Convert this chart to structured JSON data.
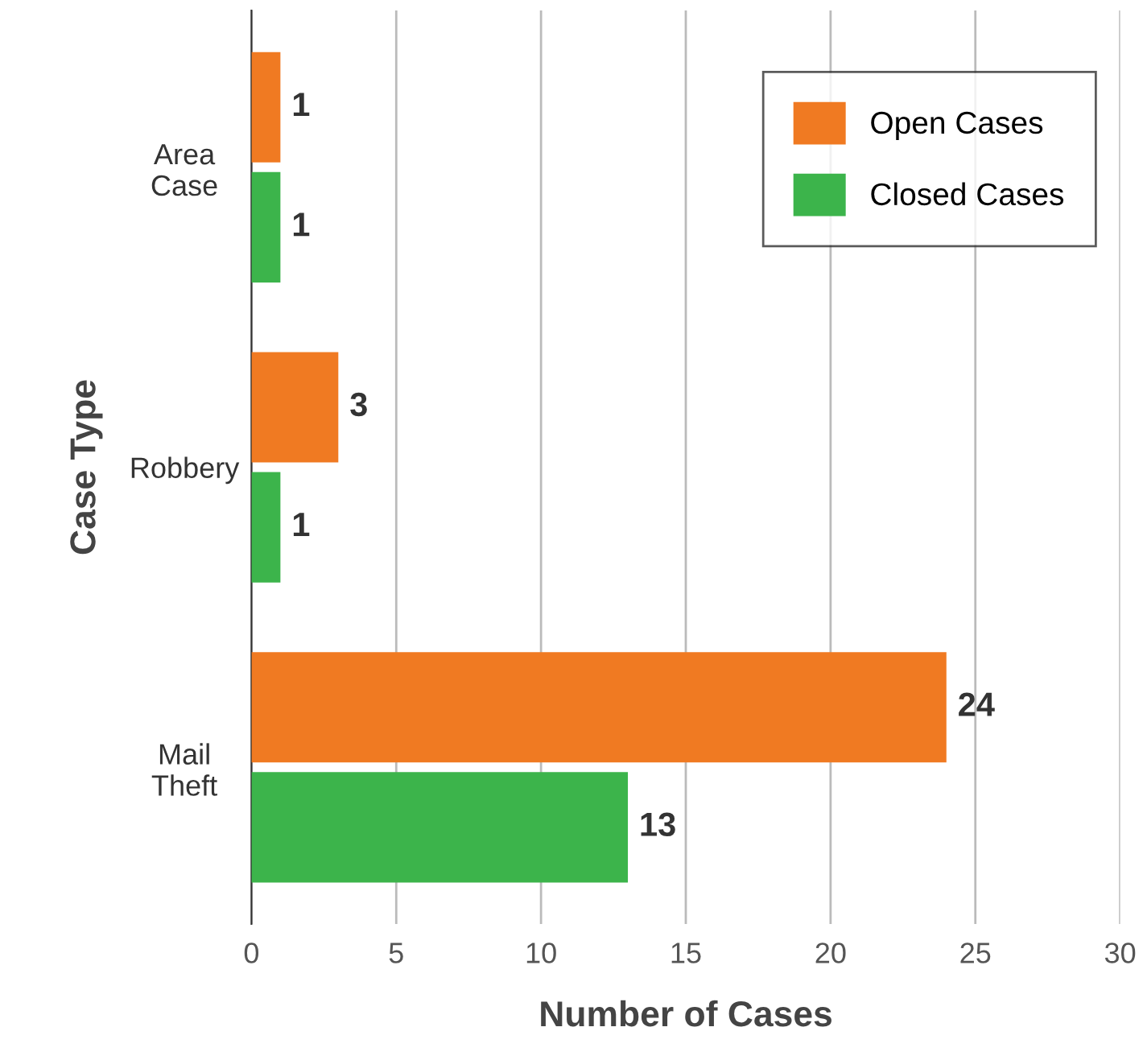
{
  "chart_data": {
    "type": "bar",
    "orientation": "horizontal",
    "xlabel": "Number of Cases",
    "ylabel": "Case Type",
    "categories": [
      "Area\nCase",
      "Robbery",
      "Mail\nTheft"
    ],
    "series": [
      {
        "name": "Open Cases",
        "color": "#f07a22",
        "values": [
          1,
          3,
          24
        ]
      },
      {
        "name": "Closed Cases",
        "color": "#3cb44b",
        "values": [
          1,
          1,
          13
        ]
      }
    ],
    "xlim": [
      0,
      30
    ],
    "xticks": [
      0,
      5,
      10,
      15,
      20,
      25,
      30
    ],
    "grid": "x",
    "legend": "top right",
    "data_labels": true
  }
}
